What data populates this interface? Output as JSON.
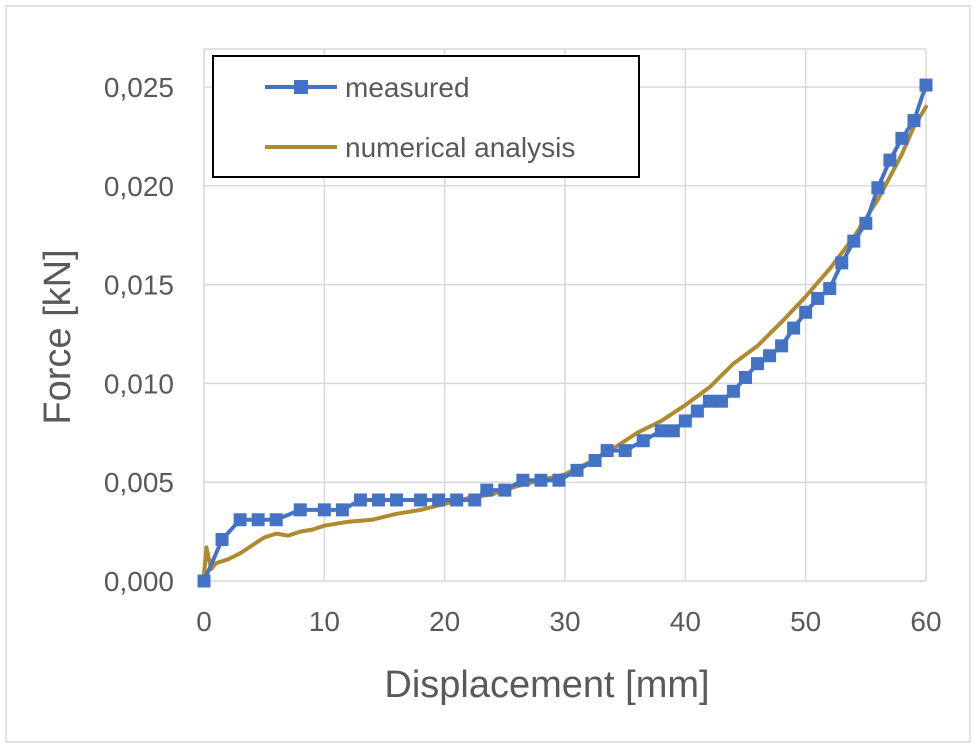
{
  "chart_data": {
    "type": "line",
    "title": "",
    "xlabel": "Displacement [mm]",
    "ylabel": "Force [kN]",
    "xlim": [
      0,
      60
    ],
    "ylim": [
      0,
      0.025
    ],
    "xticks": [
      0,
      10,
      20,
      30,
      40,
      50,
      60
    ],
    "yticks": [
      0,
      0.005,
      0.01,
      0.015,
      0.02,
      0.025
    ],
    "xtick_labels": [
      "0",
      "10",
      "20",
      "30",
      "40",
      "50",
      "60"
    ],
    "ytick_labels": [
      "0,000",
      "0,005",
      "0,010",
      "0,015",
      "0,020",
      "0,025"
    ],
    "grid": true,
    "legend_position": "top-left",
    "series": [
      {
        "name": "measured",
        "color": "#4472c4",
        "marker": "square",
        "x": [
          0,
          1.5,
          3,
          4.5,
          6,
          8,
          10,
          11.5,
          13,
          14.5,
          16,
          18,
          19.5,
          21,
          22.5,
          23.5,
          25,
          26.5,
          28,
          29.5,
          31,
          32.5,
          33.5,
          35,
          36.5,
          38,
          39,
          40,
          41,
          42,
          43,
          44,
          45,
          46,
          47,
          48,
          49,
          50,
          51,
          52,
          53,
          54,
          55,
          56,
          57,
          58,
          59,
          60
        ],
        "y": [
          0.0,
          0.0021,
          0.0031,
          0.0031,
          0.0031,
          0.0036,
          0.0036,
          0.0036,
          0.0041,
          0.0041,
          0.0041,
          0.0041,
          0.0041,
          0.0041,
          0.0041,
          0.0046,
          0.0046,
          0.0051,
          0.0051,
          0.0051,
          0.0056,
          0.0061,
          0.0066,
          0.0066,
          0.0071,
          0.0076,
          0.0076,
          0.0081,
          0.0086,
          0.0091,
          0.0091,
          0.0096,
          0.0103,
          0.011,
          0.0114,
          0.0119,
          0.0128,
          0.0136,
          0.0143,
          0.0148,
          0.0161,
          0.0172,
          0.0181,
          0.0199,
          0.0213,
          0.0224,
          0.0233,
          0.0251
        ]
      },
      {
        "name": "numerical analysis",
        "color": "#b08a2e",
        "marker": "none",
        "x": [
          0,
          0.2,
          0.6,
          1,
          2,
          3,
          4,
          5,
          6,
          7,
          8,
          9,
          10,
          12,
          14,
          16,
          18,
          20,
          22,
          24,
          26,
          28,
          30,
          32,
          34,
          36,
          38,
          40,
          42,
          44,
          46,
          48,
          50,
          52,
          54,
          56,
          58,
          59,
          60
        ],
        "y": [
          0.0003,
          0.0017,
          0.0006,
          0.0009,
          0.0011,
          0.0014,
          0.0018,
          0.0022,
          0.0024,
          0.0023,
          0.0025,
          0.0026,
          0.0028,
          0.003,
          0.0031,
          0.0034,
          0.0036,
          0.0039,
          0.0042,
          0.0044,
          0.0048,
          0.0051,
          0.0054,
          0.006,
          0.0067,
          0.0075,
          0.0081,
          0.0089,
          0.0098,
          0.011,
          0.0119,
          0.0131,
          0.0144,
          0.0158,
          0.0174,
          0.0193,
          0.0216,
          0.023,
          0.024
        ]
      }
    ]
  }
}
